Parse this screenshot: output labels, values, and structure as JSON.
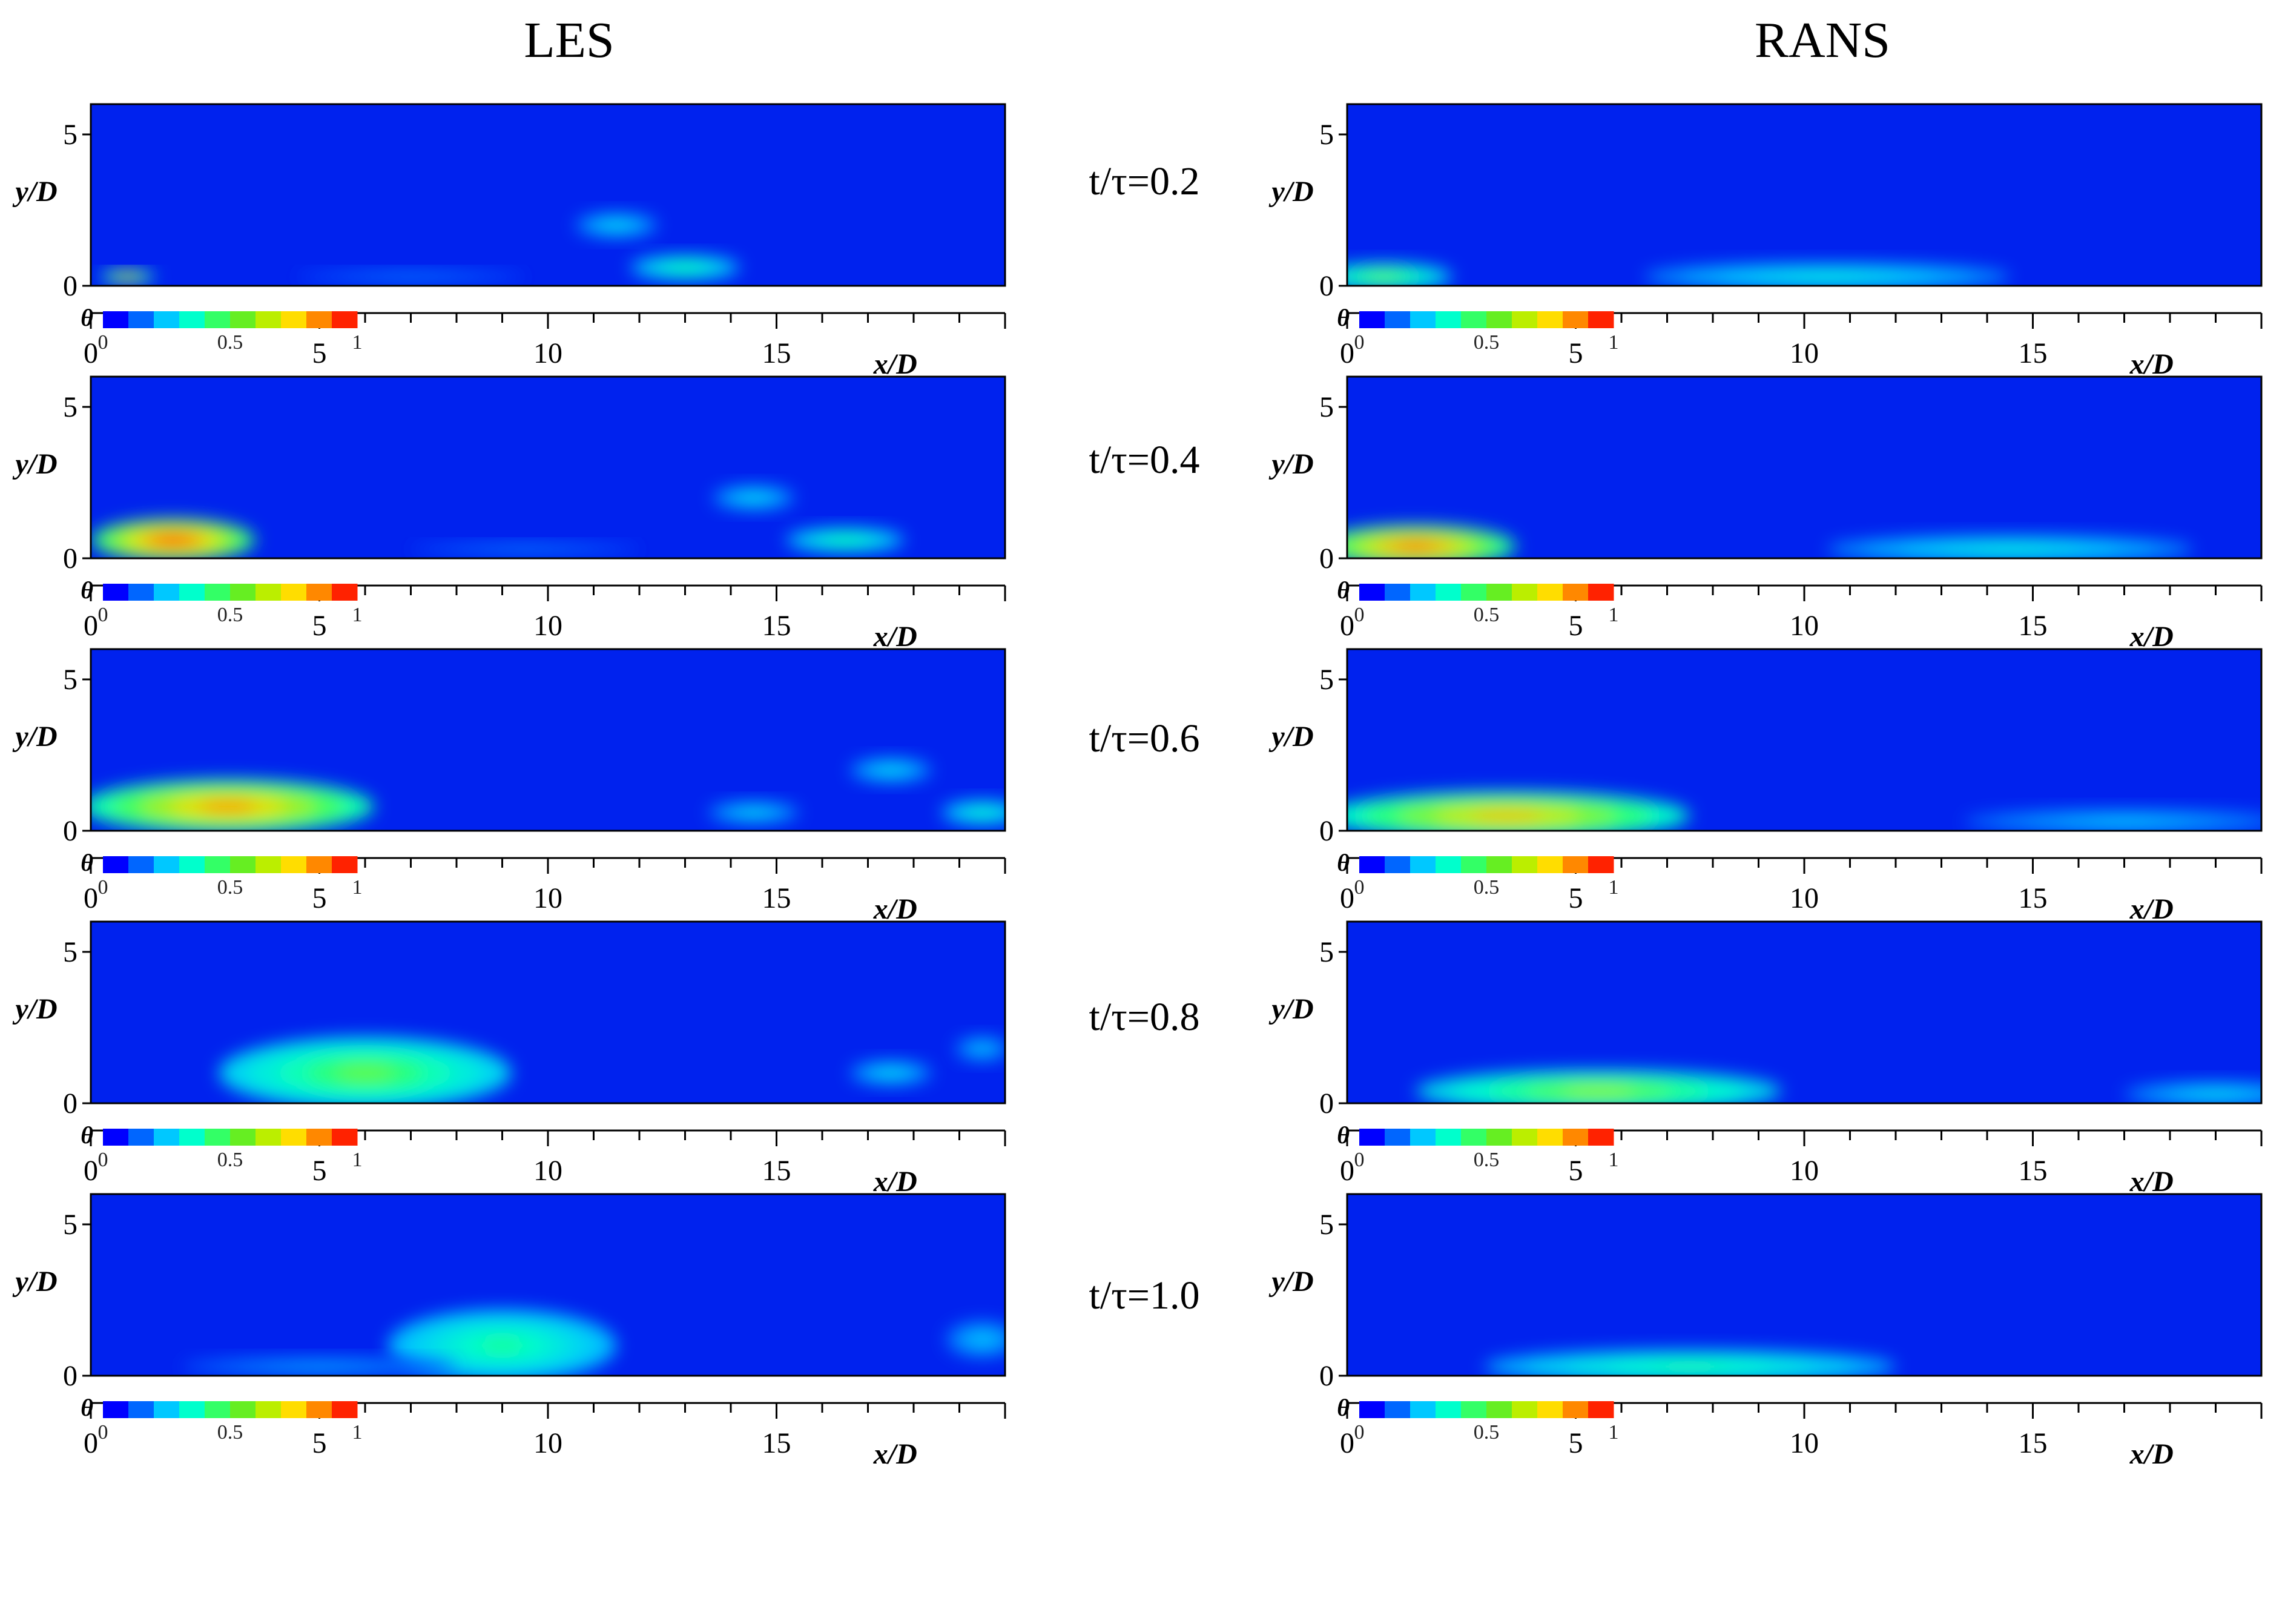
{
  "columns": [
    {
      "title": "LES"
    },
    {
      "title": "RANS"
    }
  ],
  "time_labels": [
    "t/τ=0.2",
    "t/τ=0.4",
    "t/τ=0.6",
    "t/τ=0.8",
    "t/τ=1.0"
  ],
  "axes": {
    "y_label": "y/D",
    "y_ticks": [
      "0",
      "5"
    ],
    "x_label": "x/D",
    "x_ticks": [
      "0",
      "5",
      "10",
      "15"
    ]
  },
  "colorbar": {
    "variable": "θ",
    "tick_labels": [
      "0",
      "0.5",
      "1"
    ],
    "colors": [
      "#0000ff",
      "#0066ff",
      "#00c8ff",
      "#00ffcc",
      "#33ff66",
      "#66ee22",
      "#bbee00",
      "#ffdd00",
      "#ff8800",
      "#ff2200"
    ]
  },
  "colors": {
    "field_background": "#0022ee",
    "border": "#000000"
  },
  "chart_data": [
    {
      "type": "heatmap",
      "model": "LES",
      "time": 0.2,
      "xlabel": "x/D",
      "ylabel": "y/D",
      "colorbar_label": "θ",
      "clim": [
        0,
        1
      ],
      "xlim": [
        0,
        20
      ],
      "ylim": [
        0,
        6
      ],
      "blobs": [
        {
          "x": 0.8,
          "y": 0.3,
          "rx": 0.6,
          "ry": 0.2,
          "theta": 0.8
        },
        {
          "x": 11.5,
          "y": 2.0,
          "rx": 0.9,
          "ry": 0.4,
          "theta": 0.35
        },
        {
          "x": 13.0,
          "y": 0.6,
          "rx": 1.2,
          "ry": 0.4,
          "theta": 0.5
        },
        {
          "x": 7.0,
          "y": 0.3,
          "rx": 2.5,
          "ry": 0.2,
          "theta": 0.2
        }
      ]
    },
    {
      "type": "heatmap",
      "model": "RANS",
      "time": 0.2,
      "xlabel": "x/D",
      "ylabel": "y/D",
      "colorbar_label": "θ",
      "clim": [
        0,
        1
      ],
      "xlim": [
        0,
        20
      ],
      "ylim": [
        0,
        6
      ],
      "blobs": [
        {
          "x": 0.8,
          "y": 0.3,
          "rx": 1.5,
          "ry": 0.45,
          "theta": 0.6
        },
        {
          "x": 10.5,
          "y": 0.3,
          "rx": 4.0,
          "ry": 0.45,
          "theta": 0.4
        }
      ]
    },
    {
      "type": "heatmap",
      "model": "LES",
      "time": 0.4,
      "xlabel": "x/D",
      "ylabel": "y/D",
      "colorbar_label": "θ",
      "clim": [
        0,
        1
      ],
      "xlim": [
        0,
        20
      ],
      "ylim": [
        0,
        6
      ],
      "blobs": [
        {
          "x": 1.8,
          "y": 0.6,
          "rx": 1.8,
          "ry": 0.7,
          "theta": 0.95
        },
        {
          "x": 14.5,
          "y": 2.0,
          "rx": 0.9,
          "ry": 0.4,
          "theta": 0.35
        },
        {
          "x": 16.5,
          "y": 0.6,
          "rx": 1.3,
          "ry": 0.4,
          "theta": 0.5
        },
        {
          "x": 9.5,
          "y": 0.3,
          "rx": 2.5,
          "ry": 0.2,
          "theta": 0.2
        }
      ]
    },
    {
      "type": "heatmap",
      "model": "RANS",
      "time": 0.4,
      "xlabel": "x/D",
      "ylabel": "y/D",
      "colorbar_label": "θ",
      "clim": [
        0,
        1
      ],
      "xlim": [
        0,
        20
      ],
      "ylim": [
        0,
        6
      ],
      "blobs": [
        {
          "x": 1.5,
          "y": 0.4,
          "rx": 2.2,
          "ry": 0.7,
          "theta": 0.9
        },
        {
          "x": 14.5,
          "y": 0.3,
          "rx": 4.0,
          "ry": 0.45,
          "theta": 0.4
        }
      ]
    },
    {
      "type": "heatmap",
      "model": "LES",
      "time": 0.6,
      "xlabel": "x/D",
      "ylabel": "y/D",
      "colorbar_label": "θ",
      "clim": [
        0,
        1
      ],
      "xlim": [
        0,
        20
      ],
      "ylim": [
        0,
        6
      ],
      "blobs": [
        {
          "x": 3.0,
          "y": 0.8,
          "rx": 3.2,
          "ry": 0.9,
          "theta": 0.85
        },
        {
          "x": 17.5,
          "y": 2.0,
          "rx": 0.9,
          "ry": 0.4,
          "theta": 0.35
        },
        {
          "x": 19.5,
          "y": 0.6,
          "rx": 0.9,
          "ry": 0.4,
          "theta": 0.45
        },
        {
          "x": 14.5,
          "y": 0.6,
          "rx": 1.0,
          "ry": 0.35,
          "theta": 0.35
        }
      ]
    },
    {
      "type": "heatmap",
      "model": "RANS",
      "time": 0.6,
      "xlabel": "x/D",
      "ylabel": "y/D",
      "colorbar_label": "θ",
      "clim": [
        0,
        1
      ],
      "xlim": [
        0,
        20
      ],
      "ylim": [
        0,
        6
      ],
      "blobs": [
        {
          "x": 3.5,
          "y": 0.5,
          "rx": 4.0,
          "ry": 0.8,
          "theta": 0.8
        },
        {
          "x": 17.0,
          "y": 0.3,
          "rx": 3.5,
          "ry": 0.4,
          "theta": 0.3
        }
      ]
    },
    {
      "type": "heatmap",
      "model": "LES",
      "time": 0.8,
      "xlabel": "x/D",
      "ylabel": "y/D",
      "colorbar_label": "θ",
      "clim": [
        0,
        1
      ],
      "xlim": [
        0,
        20
      ],
      "ylim": [
        0,
        6
      ],
      "blobs": [
        {
          "x": 6.0,
          "y": 1.0,
          "rx": 3.2,
          "ry": 1.2,
          "theta": 0.6
        },
        {
          "x": 17.5,
          "y": 1.0,
          "rx": 0.9,
          "ry": 0.4,
          "theta": 0.35
        },
        {
          "x": 19.5,
          "y": 1.8,
          "rx": 0.6,
          "ry": 0.4,
          "theta": 0.3
        }
      ]
    },
    {
      "type": "heatmap",
      "model": "RANS",
      "time": 0.8,
      "xlabel": "x/D",
      "ylabel": "y/D",
      "colorbar_label": "θ",
      "clim": [
        0,
        1
      ],
      "xlim": [
        0,
        20
      ],
      "ylim": [
        0,
        6
      ],
      "blobs": [
        {
          "x": 5.5,
          "y": 0.4,
          "rx": 4.0,
          "ry": 0.7,
          "theta": 0.65
        },
        {
          "x": 19.0,
          "y": 0.3,
          "rx": 2.0,
          "ry": 0.4,
          "theta": 0.35
        }
      ]
    },
    {
      "type": "heatmap",
      "model": "LES",
      "time": 1.0,
      "xlabel": "x/D",
      "ylabel": "y/D",
      "colorbar_label": "θ",
      "clim": [
        0,
        1
      ],
      "xlim": [
        0,
        20
      ],
      "ylim": [
        0,
        6
      ],
      "blobs": [
        {
          "x": 9.0,
          "y": 1.0,
          "rx": 2.5,
          "ry": 1.2,
          "theta": 0.5
        },
        {
          "x": 5.0,
          "y": 0.3,
          "rx": 3.0,
          "ry": 0.3,
          "theta": 0.25
        },
        {
          "x": 19.5,
          "y": 1.2,
          "rx": 0.8,
          "ry": 0.6,
          "theta": 0.3
        }
      ]
    },
    {
      "type": "heatmap",
      "model": "RANS",
      "time": 1.0,
      "xlabel": "x/D",
      "ylabel": "y/D",
      "colorbar_label": "θ",
      "clim": [
        0,
        1
      ],
      "xlim": [
        0,
        20
      ],
      "ylim": [
        0,
        6
      ],
      "blobs": [
        {
          "x": 7.5,
          "y": 0.3,
          "rx": 4.5,
          "ry": 0.55,
          "theta": 0.5
        }
      ]
    }
  ]
}
